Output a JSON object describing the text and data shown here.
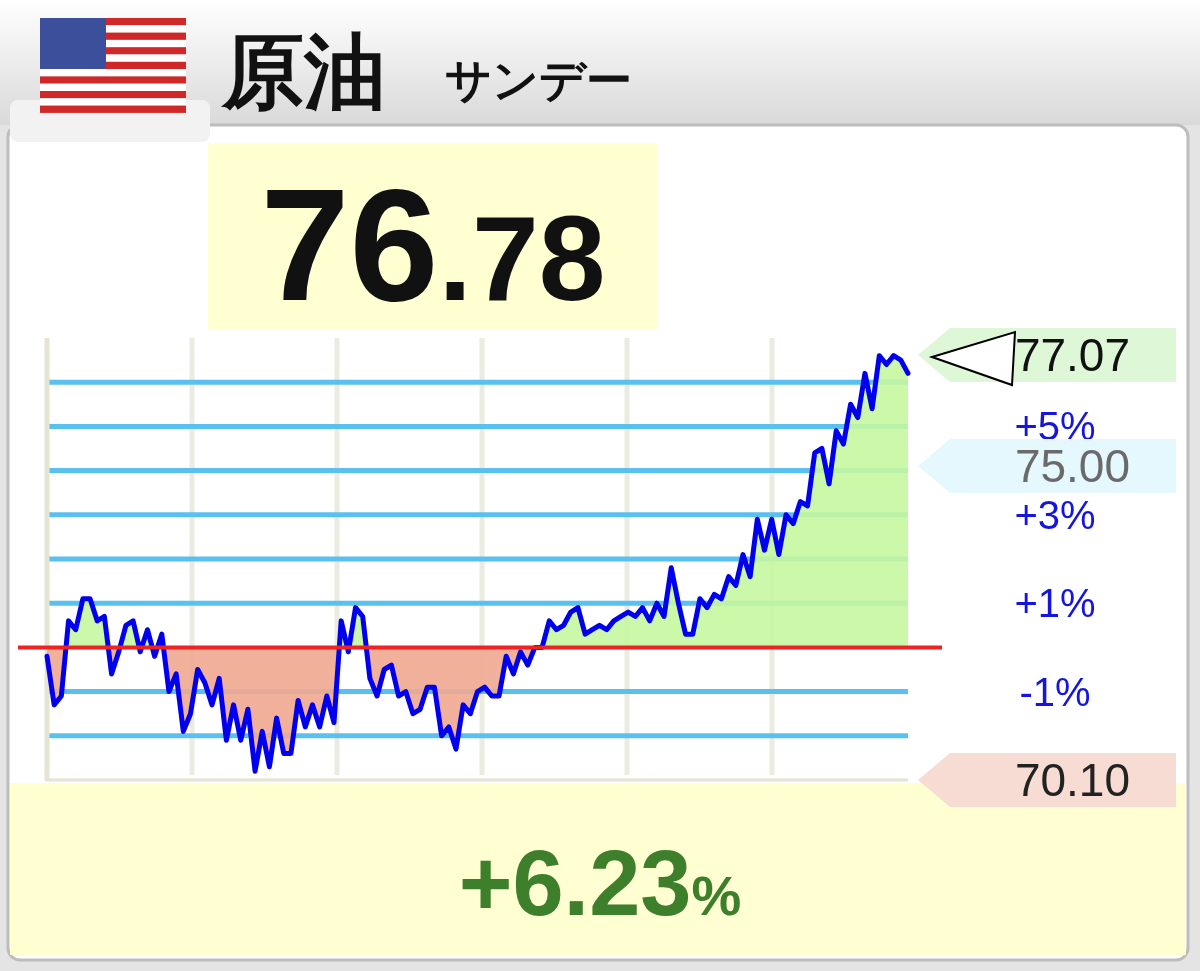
{
  "chart_data": {
    "type": "area",
    "title": "原油",
    "subtitle": "サンデー",
    "annotations": [
      "76.78",
      "+6.23%",
      "77.07",
      "75.00",
      "70.10"
    ],
    "categories": [
      null,
      null,
      null,
      null,
      null,
      null,
      null,
      null,
      null,
      null,
      null,
      null,
      null,
      null,
      null,
      null,
      null,
      null,
      null,
      null,
      null,
      null,
      null,
      null,
      null,
      null,
      null,
      null,
      null,
      null,
      null,
      null,
      null,
      null,
      null,
      null,
      null,
      null,
      null,
      null,
      null,
      null,
      null,
      null,
      null,
      null,
      null,
      null,
      null,
      null,
      null,
      null,
      null,
      null,
      null,
      null,
      null,
      null,
      null,
      null,
      null,
      null,
      null,
      null,
      null,
      null,
      null,
      null,
      null,
      null,
      null,
      null,
      null,
      null,
      null,
      null,
      null,
      null,
      null,
      null,
      null,
      null,
      null,
      null,
      null,
      null,
      null,
      null,
      null,
      null,
      null,
      null,
      null,
      null,
      null,
      null,
      null,
      null,
      null,
      null,
      null,
      null,
      null,
      null,
      null,
      null,
      null,
      null,
      null,
      null,
      null,
      null,
      null,
      null,
      null,
      null,
      null,
      null,
      null,
      null,
      null
    ],
    "series": [
      {
        "color": "#0000ee",
        "values": [
          -0.2,
          -1.3,
          -1.1,
          0.6,
          0.4,
          1.1,
          1.1,
          0.6,
          0.7,
          -0.6,
          -0.1,
          0.5,
          0.6,
          -0.1,
          0.4,
          -0.2,
          0.3,
          -1.0,
          -0.6,
          -1.9,
          -1.5,
          -0.5,
          -0.8,
          -1.3,
          -0.7,
          -2.1,
          -1.3,
          -2.1,
          -1.4,
          -2.8,
          -1.9,
          -2.7,
          -1.6,
          -2.4,
          -2.4,
          -1.2,
          -1.8,
          -1.3,
          -1.8,
          -1.1,
          -1.7,
          0.6,
          -0.1,
          0.9,
          0.7,
          -0.7,
          -1.1,
          -0.5,
          -0.4,
          -1.1,
          -1.0,
          -1.5,
          -1.4,
          -0.9,
          -0.9,
          -2.0,
          -1.8,
          -2.3,
          -1.3,
          -1.5,
          -1.0,
          -0.9,
          -1.1,
          -1.1,
          -0.2,
          -0.6,
          -0.1,
          -0.4,
          0.0,
          0.0,
          0.6,
          0.4,
          0.5,
          0.8,
          0.9,
          0.3,
          0.4,
          0.5,
          0.4,
          0.6,
          0.7,
          0.8,
          0.7,
          0.9,
          0.6,
          1.0,
          0.7,
          1.8,
          1.0,
          0.3,
          0.3,
          1.1,
          0.9,
          1.2,
          1.1,
          1.6,
          1.4,
          2.1,
          1.6,
          2.9,
          2.2,
          2.9,
          2.1,
          3.0,
          2.8,
          3.3,
          3.2,
          4.4,
          4.5,
          3.7,
          4.9,
          4.6,
          5.5,
          5.2,
          6.2,
          5.4,
          6.6,
          6.4,
          6.6,
          6.5,
          6.2
        ]
      }
    ],
    "ylim": [
      -3,
      7
    ],
    "yticks": [
      {
        "value": -2,
        "label": null
      },
      {
        "value": -1,
        "label": "-1%"
      },
      {
        "value": 1,
        "label": "+1%"
      },
      {
        "value": 2,
        "label": null
      },
      {
        "value": 3,
        "label": "+3%"
      },
      {
        "value": 4,
        "label": null
      },
      {
        "value": 5,
        "label": "+5%"
      },
      {
        "value": 6,
        "label": null
      }
    ],
    "tick_labels": "y",
    "grid": true,
    "ref_lines": [
      {
        "axis": "y",
        "value": 0,
        "color": "#ee2222"
      }
    ]
  }
}
